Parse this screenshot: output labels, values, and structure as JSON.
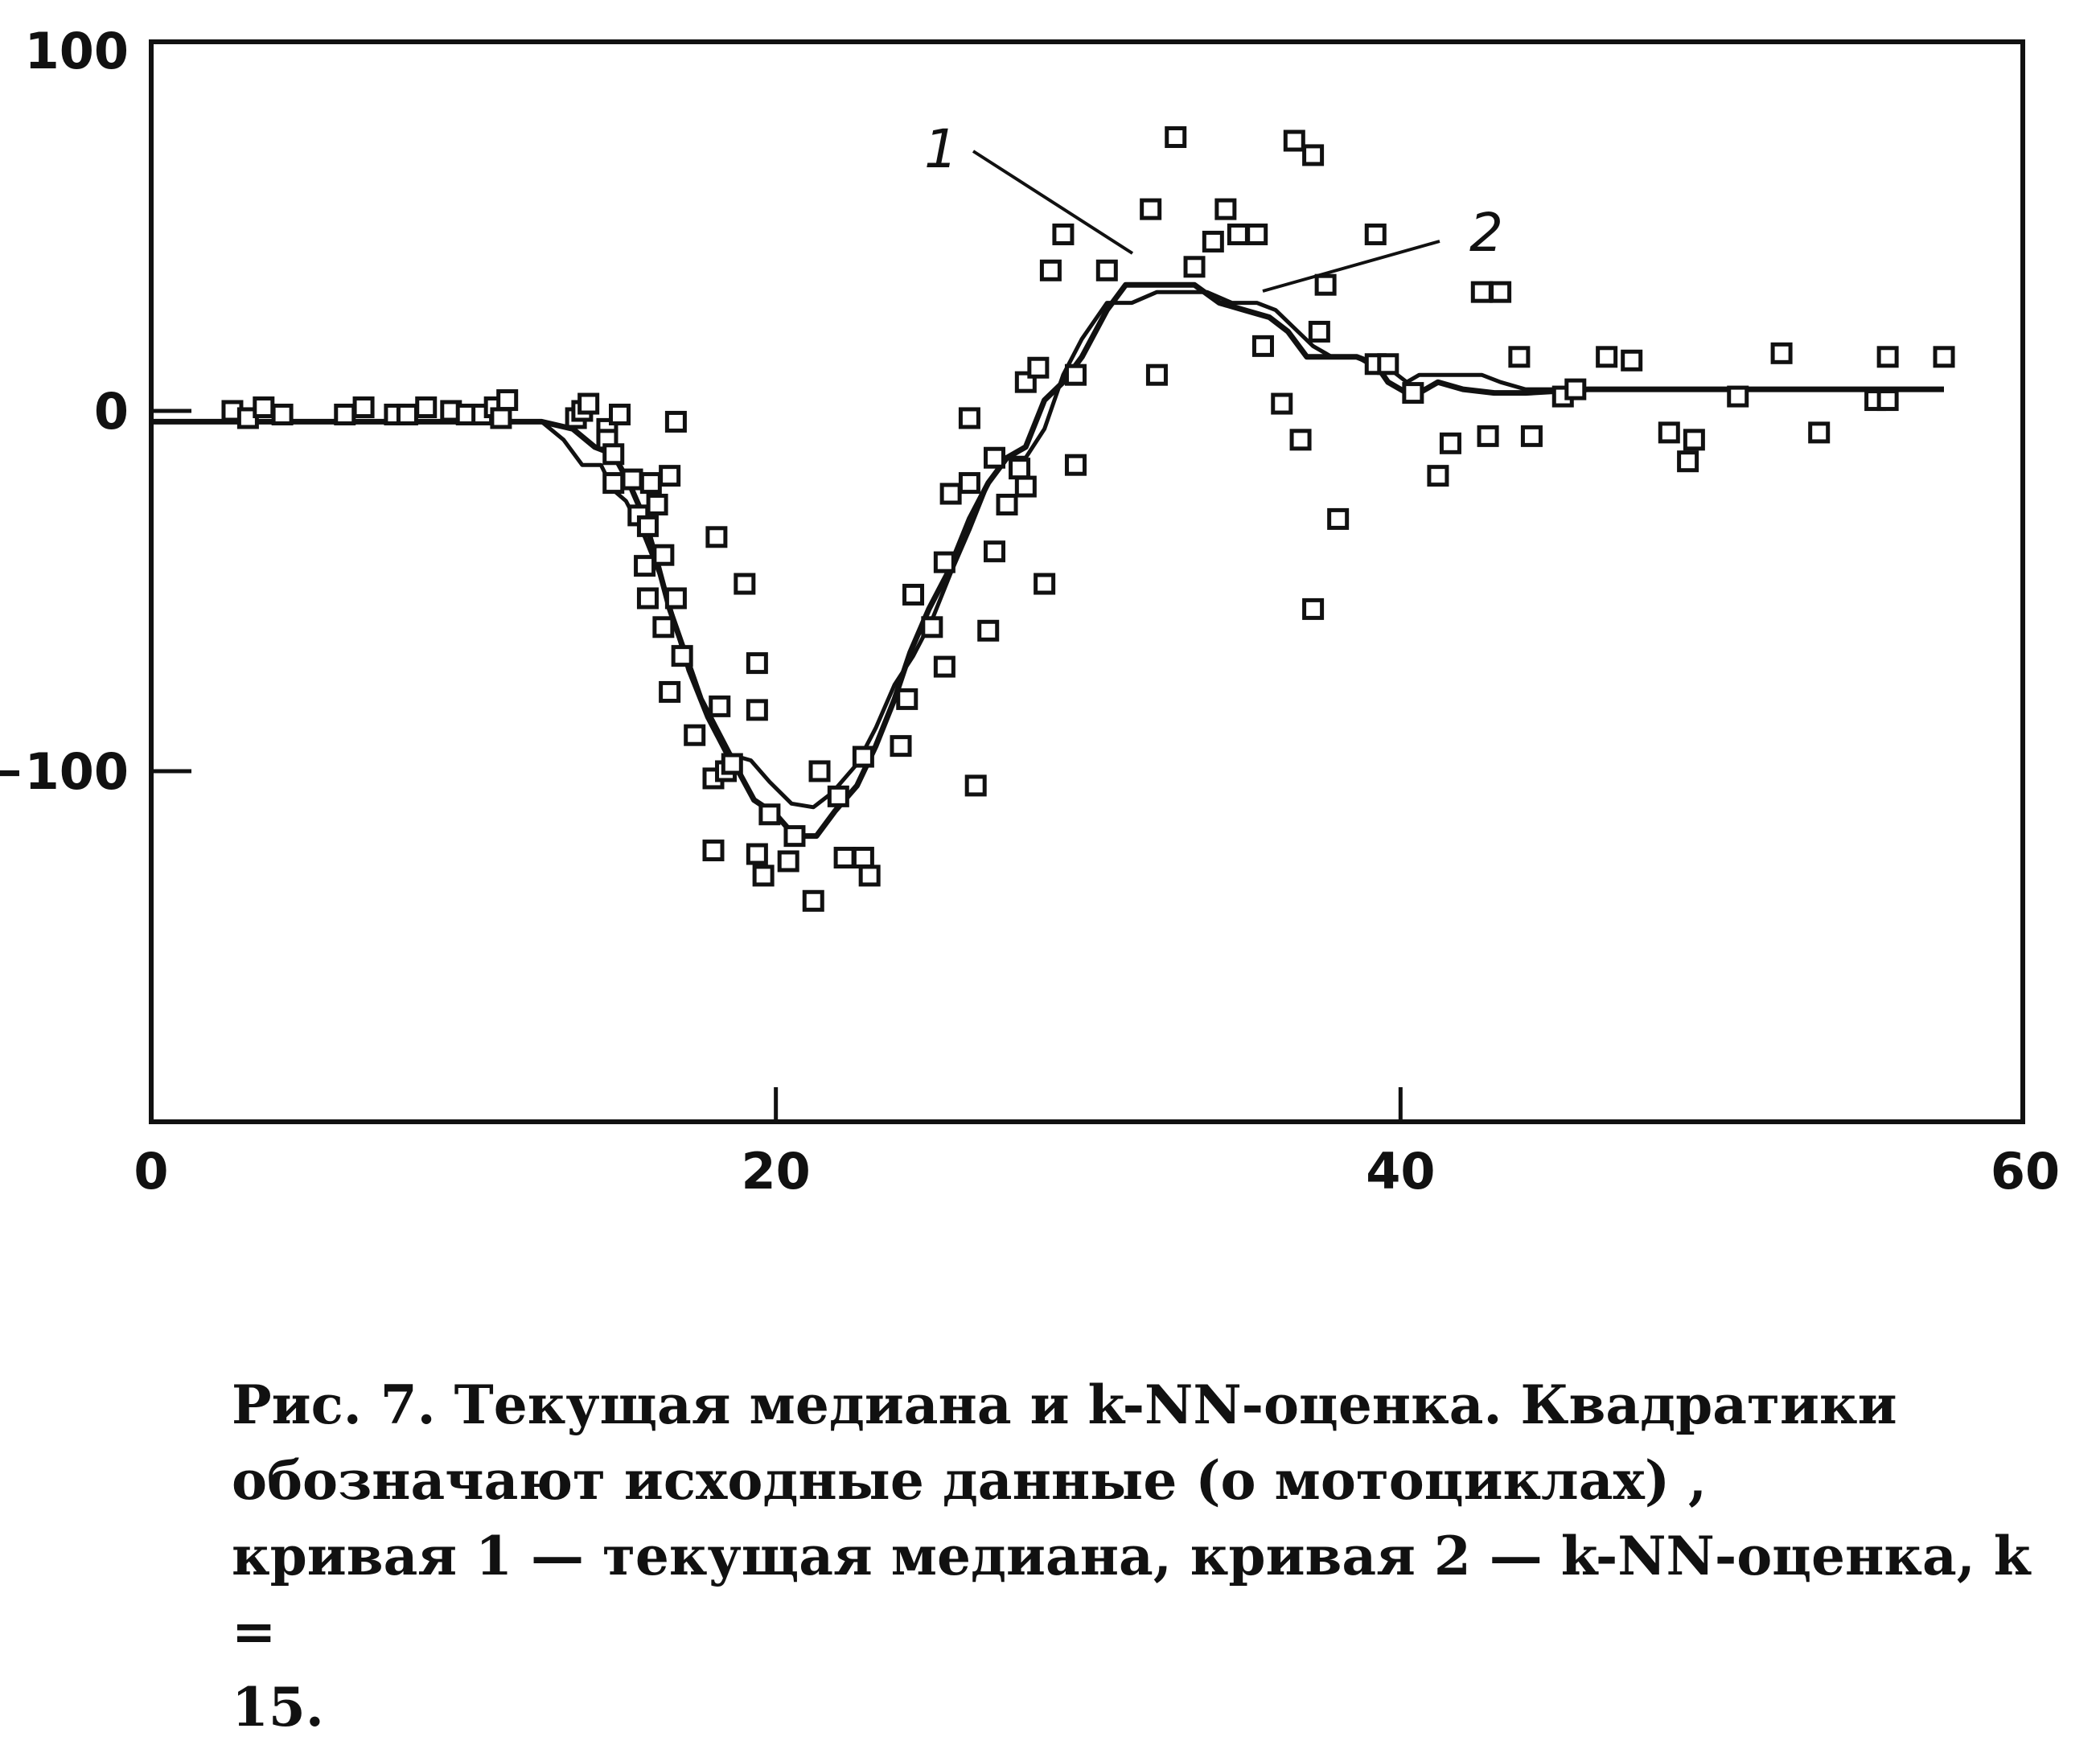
{
  "chart_data": {
    "type": "scatter",
    "title": "",
    "xlabel": "",
    "ylabel": "",
    "xlim": [
      0,
      60
    ],
    "ylim": [
      -200,
      100
    ],
    "x_ticks": [
      0,
      20,
      40,
      60
    ],
    "y_ticks": [
      100,
      0,
      -100
    ],
    "grid": false,
    "legend": "none",
    "point_marker": "open-square",
    "points": [
      [
        2.6,
        0
      ],
      [
        3.1,
        -2
      ],
      [
        3.6,
        1
      ],
      [
        4.2,
        -1
      ],
      [
        6.2,
        -1
      ],
      [
        6.8,
        1
      ],
      [
        7.8,
        -1
      ],
      [
        8.2,
        -1
      ],
      [
        8.8,
        1
      ],
      [
        9.6,
        0
      ],
      [
        10.1,
        -1
      ],
      [
        10.6,
        -1
      ],
      [
        11,
        1
      ],
      [
        11.2,
        -2
      ],
      [
        11.4,
        3
      ],
      [
        13.6,
        -2
      ],
      [
        13.8,
        0
      ],
      [
        14,
        2
      ],
      [
        14.6,
        -5
      ],
      [
        14.6,
        -8
      ],
      [
        14.8,
        -12
      ],
      [
        14.8,
        -20
      ],
      [
        15,
        -1
      ],
      [
        15.4,
        -19
      ],
      [
        15.6,
        -29
      ],
      [
        15.8,
        -43
      ],
      [
        15.9,
        -32
      ],
      [
        15.9,
        -52
      ],
      [
        16,
        -20
      ],
      [
        16.2,
        -26
      ],
      [
        16.4,
        -40
      ],
      [
        16.4,
        -60
      ],
      [
        16.6,
        -18
      ],
      [
        16.6,
        -78
      ],
      [
        16.8,
        -3
      ],
      [
        16.8,
        -52
      ],
      [
        17,
        -68
      ],
      [
        17.4,
        -90
      ],
      [
        18,
        -122
      ],
      [
        18.1,
        -35
      ],
      [
        18,
        -102
      ],
      [
        18.2,
        -82
      ],
      [
        18.4,
        -100
      ],
      [
        18.6,
        -98
      ],
      [
        19,
        -48
      ],
      [
        19.4,
        -70
      ],
      [
        19.4,
        -83
      ],
      [
        19.4,
        -123
      ],
      [
        19.6,
        -129
      ],
      [
        19.8,
        -112
      ],
      [
        20.4,
        -125
      ],
      [
        20.6,
        -118
      ],
      [
        21.2,
        -136
      ],
      [
        21.4,
        -100
      ],
      [
        22.0,
        -107
      ],
      [
        22.2,
        -124
      ],
      [
        22.8,
        -96
      ],
      [
        22.8,
        -124
      ],
      [
        23.0,
        -129
      ],
      [
        24,
        -93
      ],
      [
        24.2,
        -80
      ],
      [
        24.4,
        -51
      ],
      [
        25,
        -60
      ],
      [
        25.4,
        -42
      ],
      [
        25.4,
        -71
      ],
      [
        25.6,
        -23
      ],
      [
        26.2,
        -2
      ],
      [
        26.2,
        -20
      ],
      [
        26.4,
        -104
      ],
      [
        26.8,
        -61
      ],
      [
        27.0,
        -39
      ],
      [
        27.0,
        -13
      ],
      [
        27.4,
        -26
      ],
      [
        27.8,
        -16
      ],
      [
        28.0,
        -21
      ],
      [
        28,
        8
      ],
      [
        28.4,
        12
      ],
      [
        28.6,
        -48
      ],
      [
        28.8,
        39
      ],
      [
        29.2,
        49
      ],
      [
        29.6,
        10
      ],
      [
        29.6,
        -15
      ],
      [
        30.6,
        39
      ],
      [
        32.0,
        56
      ],
      [
        32.2,
        10
      ],
      [
        32.8,
        76
      ],
      [
        33.4,
        40
      ],
      [
        34,
        47
      ],
      [
        34.4,
        56
      ],
      [
        34.8,
        49
      ],
      [
        35.4,
        49
      ],
      [
        35.6,
        18
      ],
      [
        36.2,
        2
      ],
      [
        36.6,
        75
      ],
      [
        36.8,
        -8
      ],
      [
        37.2,
        -55
      ],
      [
        37.2,
        71
      ],
      [
        37.4,
        22
      ],
      [
        37.6,
        35
      ],
      [
        38,
        -30
      ],
      [
        39.2,
        49
      ],
      [
        39.2,
        13
      ],
      [
        39.6,
        13
      ],
      [
        40.4,
        5
      ],
      [
        41.2,
        -18
      ],
      [
        41.6,
        -9
      ],
      [
        42.6,
        33
      ],
      [
        42.8,
        -7
      ],
      [
        43.2,
        33
      ],
      [
        43.8,
        15
      ],
      [
        44.2,
        -7
      ],
      [
        45.2,
        4
      ],
      [
        45.6,
        6
      ],
      [
        46.6,
        15
      ],
      [
        47.4,
        14
      ],
      [
        48.6,
        -6
      ],
      [
        49.2,
        -14
      ],
      [
        49.4,
        -8
      ],
      [
        50.8,
        4
      ],
      [
        52.2,
        16
      ],
      [
        53.4,
        -6
      ],
      [
        55.2,
        3
      ],
      [
        55.6,
        3
      ],
      [
        55.6,
        15
      ],
      [
        57.4,
        15
      ]
    ],
    "annotations": [
      "1",
      "2"
    ],
    "series": [
      {
        "name": "1",
        "style": "thick",
        "values": [
          [
            0,
            -3
          ],
          [
            12.5,
            -3
          ],
          [
            13.5,
            -5
          ],
          [
            14.2,
            -10
          ],
          [
            14.8,
            -12
          ],
          [
            15.3,
            -20
          ],
          [
            15.8,
            -30
          ],
          [
            16.2,
            -42
          ],
          [
            16.6,
            -55
          ],
          [
            17.0,
            -65
          ],
          [
            17.6,
            -80
          ],
          [
            18.2,
            -90
          ],
          [
            18.8,
            -100
          ],
          [
            19.3,
            -108
          ],
          [
            20.0,
            -112
          ],
          [
            20.6,
            -118
          ],
          [
            21.3,
            -118
          ],
          [
            21.9,
            -111
          ],
          [
            22.6,
            -104
          ],
          [
            23.2,
            -93
          ],
          [
            23.8,
            -80
          ],
          [
            24.3,
            -67
          ],
          [
            24.9,
            -55
          ],
          [
            25.5,
            -45
          ],
          [
            26.2,
            -30
          ],
          [
            26.8,
            -20
          ],
          [
            27.4,
            -13
          ],
          [
            28.0,
            -10
          ],
          [
            28.6,
            3
          ],
          [
            29.2,
            8
          ],
          [
            29.8,
            15
          ],
          [
            30.6,
            28
          ],
          [
            31.2,
            35
          ],
          [
            31.8,
            35
          ],
          [
            32.6,
            35
          ],
          [
            33.4,
            35
          ],
          [
            34.2,
            30
          ],
          [
            35.0,
            28
          ],
          [
            35.8,
            26
          ],
          [
            36.4,
            22
          ],
          [
            37.0,
            15
          ],
          [
            37.8,
            15
          ],
          [
            38.6,
            15
          ],
          [
            39.2,
            13
          ],
          [
            39.6,
            8
          ],
          [
            40.2,
            5
          ],
          [
            40.6,
            5
          ],
          [
            41.2,
            8
          ],
          [
            42.0,
            6
          ],
          [
            43.0,
            5
          ],
          [
            44.0,
            5
          ],
          [
            46,
            6
          ],
          [
            48,
            6
          ],
          [
            50,
            6
          ],
          [
            52,
            6
          ],
          [
            54,
            6
          ],
          [
            56,
            6
          ],
          [
            57.4,
            6
          ]
        ]
      },
      {
        "name": "2",
        "style": "thin",
        "values": [
          [
            0,
            -3
          ],
          [
            12.5,
            -3
          ],
          [
            13.2,
            -8
          ],
          [
            13.8,
            -15
          ],
          [
            14.4,
            -15
          ],
          [
            14.8,
            -22
          ],
          [
            15.2,
            -25
          ],
          [
            15.8,
            -35
          ],
          [
            16.4,
            -48
          ],
          [
            16.8,
            -60
          ],
          [
            17.2,
            -72
          ],
          [
            17.8,
            -85
          ],
          [
            18.4,
            -95
          ],
          [
            19.2,
            -97
          ],
          [
            19.8,
            -103
          ],
          [
            20.5,
            -109
          ],
          [
            21.2,
            -110
          ],
          [
            21.8,
            -106
          ],
          [
            22.6,
            -98
          ],
          [
            23.2,
            -88
          ],
          [
            23.8,
            -76
          ],
          [
            24.4,
            -68
          ],
          [
            25.0,
            -58
          ],
          [
            25.6,
            -45
          ],
          [
            26.2,
            -33
          ],
          [
            26.8,
            -20
          ],
          [
            27.4,
            -13
          ],
          [
            28.0,
            -13
          ],
          [
            28.6,
            -5
          ],
          [
            29.2,
            10
          ],
          [
            29.8,
            20
          ],
          [
            30.6,
            30
          ],
          [
            31.4,
            30
          ],
          [
            32.2,
            33
          ],
          [
            33.0,
            33
          ],
          [
            33.8,
            33
          ],
          [
            34.6,
            30
          ],
          [
            35.4,
            30
          ],
          [
            36.0,
            28
          ],
          [
            36.6,
            23
          ],
          [
            37.2,
            18
          ],
          [
            37.8,
            15
          ],
          [
            38.6,
            15
          ],
          [
            39.2,
            12
          ],
          [
            39.6,
            12
          ],
          [
            40.2,
            8
          ],
          [
            40.6,
            10
          ],
          [
            41.2,
            10
          ],
          [
            42.0,
            10
          ],
          [
            42.6,
            10
          ],
          [
            43.2,
            8
          ],
          [
            44.0,
            6
          ],
          [
            46,
            6
          ],
          [
            48,
            6
          ],
          [
            50,
            6
          ],
          [
            52,
            6
          ],
          [
            54,
            6
          ],
          [
            56,
            6
          ],
          [
            57.4,
            6
          ]
        ]
      }
    ]
  },
  "caption": {
    "line1": "Рис. 7.      Текущая медиана и k-NN-оценка.  Квадратики",
    "line2": "обозначают исходные данные (о мотоциклах)                     ,",
    "line3": "кривая 1 — текущая медиана, кривая 2 — k-NN-оценка, k =",
    "line4": "15."
  }
}
